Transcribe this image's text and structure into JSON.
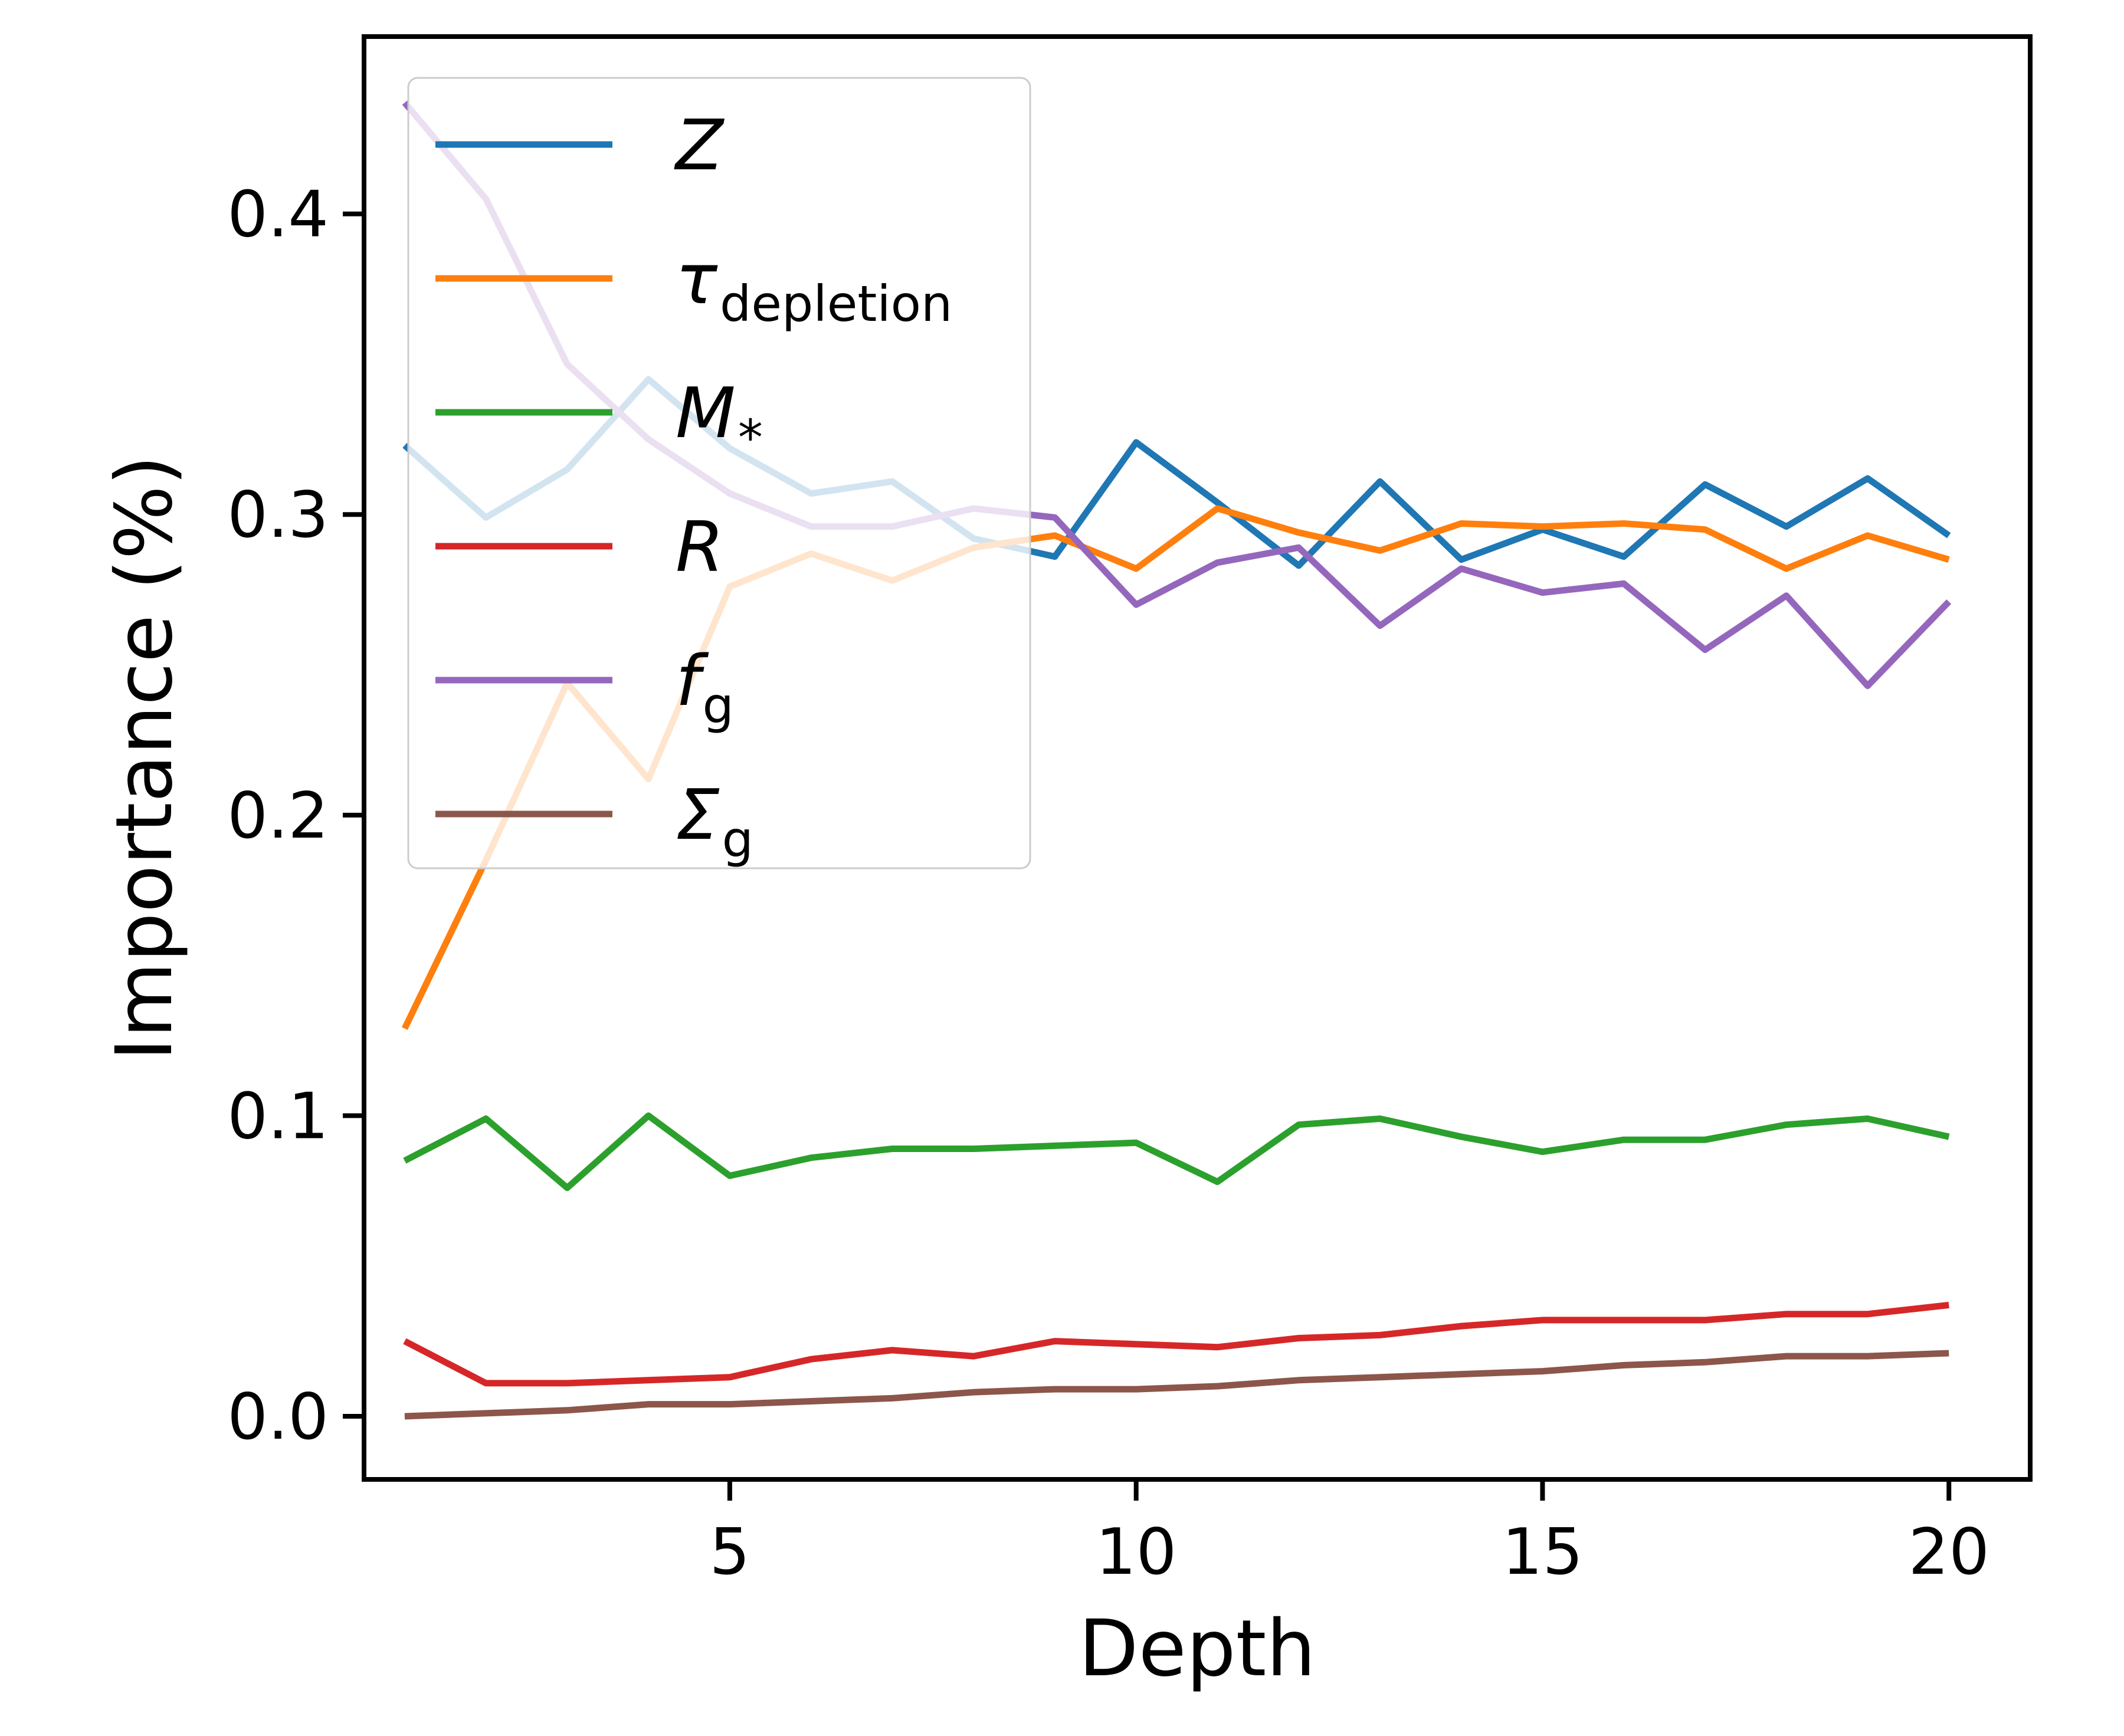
{
  "chart_data": {
    "type": "line",
    "title": "",
    "xlabel": "Depth",
    "ylabel": "Importance (%)",
    "xlim": [
      0.5,
      21.0
    ],
    "ylim": [
      -0.021,
      0.459
    ],
    "xticks": [
      5,
      10,
      15,
      20
    ],
    "xtick_labels": [
      "5",
      "10",
      "15",
      "20"
    ],
    "yticks": [
      0.0,
      0.1,
      0.2,
      0.3,
      0.4
    ],
    "ytick_labels": [
      "0.0",
      "0.1",
      "0.2",
      "0.3",
      "0.4"
    ],
    "grid": false,
    "legend_position": "upper-left",
    "x": [
      1,
      2,
      3,
      4,
      5,
      6,
      7,
      8,
      9,
      10,
      11,
      12,
      13,
      14,
      15,
      16,
      17,
      18,
      19,
      20
    ],
    "series": [
      {
        "name": "Z",
        "label_main": "Z",
        "label_sub": "",
        "color": "#1f77b4",
        "values": [
          0.323,
          0.299,
          0.315,
          0.345,
          0.322,
          0.307,
          0.311,
          0.292,
          0.286,
          0.324,
          0.304,
          0.283,
          0.311,
          0.285,
          0.295,
          0.286,
          0.31,
          0.296,
          0.312,
          0.293
        ]
      },
      {
        "name": "τ_depletion",
        "label_main": "τ",
        "label_sub": "depletion",
        "color": "#ff7f0e",
        "values": [
          0.129,
          0.185,
          0.244,
          0.212,
          0.276,
          0.287,
          0.278,
          0.289,
          0.293,
          0.282,
          0.302,
          0.294,
          0.288,
          0.297,
          0.296,
          0.297,
          0.295,
          0.282,
          0.293,
          0.285
        ]
      },
      {
        "name": "M_*",
        "label_main": "M",
        "label_sub": "*",
        "color": "#2ca02c",
        "values": [
          0.085,
          0.099,
          0.076,
          0.1,
          0.08,
          0.086,
          0.089,
          0.089,
          0.09,
          0.091,
          0.078,
          0.097,
          0.099,
          0.093,
          0.088,
          0.092,
          0.092,
          0.097,
          0.099,
          0.093
        ]
      },
      {
        "name": "R",
        "label_main": "R",
        "label_sub": "",
        "color": "#d62728",
        "values": [
          0.025,
          0.011,
          0.011,
          0.012,
          0.013,
          0.019,
          0.022,
          0.02,
          0.025,
          0.024,
          0.023,
          0.026,
          0.027,
          0.03,
          0.032,
          0.032,
          0.032,
          0.034,
          0.034,
          0.037
        ]
      },
      {
        "name": "f_g",
        "label_main": "f",
        "label_sub": "g",
        "color": "#9467bd",
        "values": [
          0.437,
          0.405,
          0.35,
          0.325,
          0.307,
          0.296,
          0.296,
          0.302,
          0.299,
          0.27,
          0.284,
          0.289,
          0.263,
          0.282,
          0.274,
          0.277,
          0.255,
          0.273,
          0.243,
          0.271
        ]
      },
      {
        "name": "Σ_g",
        "label_main": "Σ",
        "label_sub": "g",
        "color": "#8c564b",
        "values": [
          0.0,
          0.001,
          0.002,
          0.004,
          0.004,
          0.005,
          0.006,
          0.008,
          0.009,
          0.009,
          0.01,
          0.012,
          0.013,
          0.014,
          0.015,
          0.017,
          0.018,
          0.02,
          0.02,
          0.021
        ]
      }
    ]
  }
}
